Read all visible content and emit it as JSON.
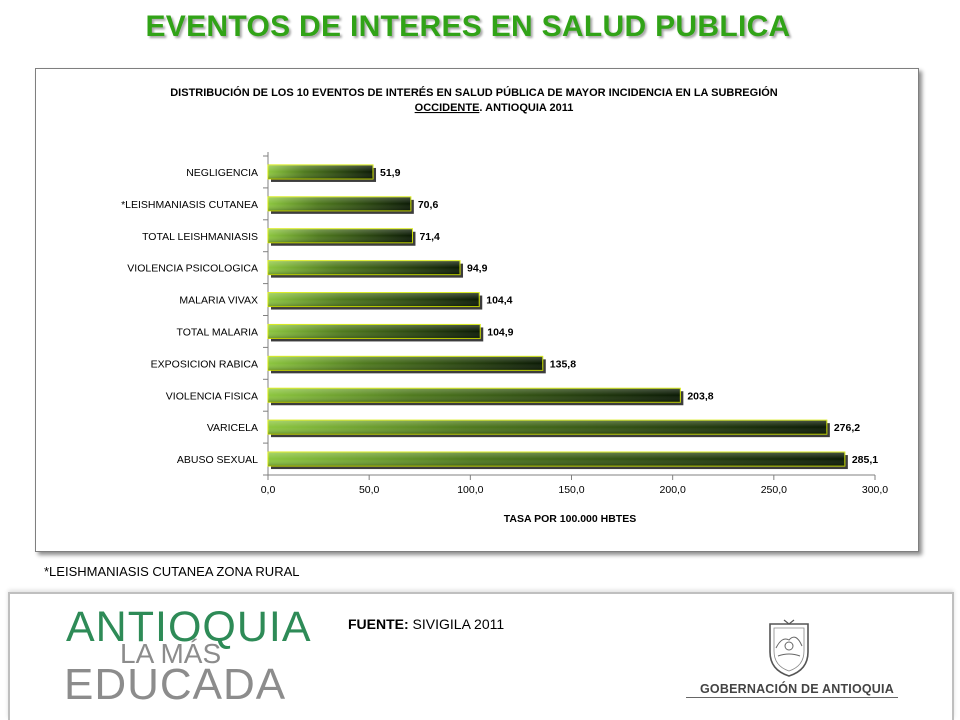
{
  "slide": {
    "title": "EVENTOS DE INTERES EN SALUD PUBLICA",
    "footnote": "*LEISHMANIASIS CUTANEA ZONA RURAL",
    "source_label": "FUENTE:",
    "source_value": " SIVIGILA 2011"
  },
  "branding": {
    "logo_line1": "ANTIOQUIA",
    "logo_line2": "LA MÁS",
    "logo_line3": "EDUCADA",
    "government": "GOBERNACIÓN DE ANTIOQUIA",
    "logo_icon": "coat-of-arms-icon"
  },
  "colors": {
    "title": "#31a317",
    "bar_light": "#8cc63f",
    "bar_dark": "#0b1a05",
    "bar_edge": "#d4e800"
  },
  "chart_data": {
    "type": "bar",
    "orientation": "horizontal",
    "title_line1": "DISTRIBUCIÓN DE LOS 10 EVENTOS DE INTERÉS EN SALUD PÚBLICA DE MAYOR INCIDENCIA EN LA SUBREGIÓN",
    "title_line2_bold": "OCCIDENTE",
    "title_line2_rest": ". ANTIOQUIA 2011",
    "xlabel": "TASA POR 100.000 HBTES",
    "ylabel": "",
    "xlim": [
      0,
      300
    ],
    "xticks": [
      "0,0",
      "50,0",
      "100,0",
      "150,0",
      "200,0",
      "250,0",
      "300,0"
    ],
    "grid": false,
    "legend": "none",
    "categories": [
      "NEGLIGENCIA",
      "*LEISHMANIASIS CUTANEA",
      "TOTAL LEISHMANIASIS",
      "VIOLENCIA PSICOLOGICA",
      "MALARIA VIVAX",
      "TOTAL MALARIA",
      "EXPOSICION RABICA",
      "VIOLENCIA FISICA",
      "VARICELA",
      "ABUSO SEXUAL"
    ],
    "values": [
      51.9,
      70.6,
      71.4,
      94.9,
      104.4,
      104.9,
      135.8,
      203.8,
      276.2,
      285.1
    ],
    "value_labels": [
      "51,9",
      "70,6",
      "71,4",
      "94,9",
      "104,4",
      "104,9",
      "135,8",
      "203,8",
      "276,2",
      "285,1"
    ]
  }
}
